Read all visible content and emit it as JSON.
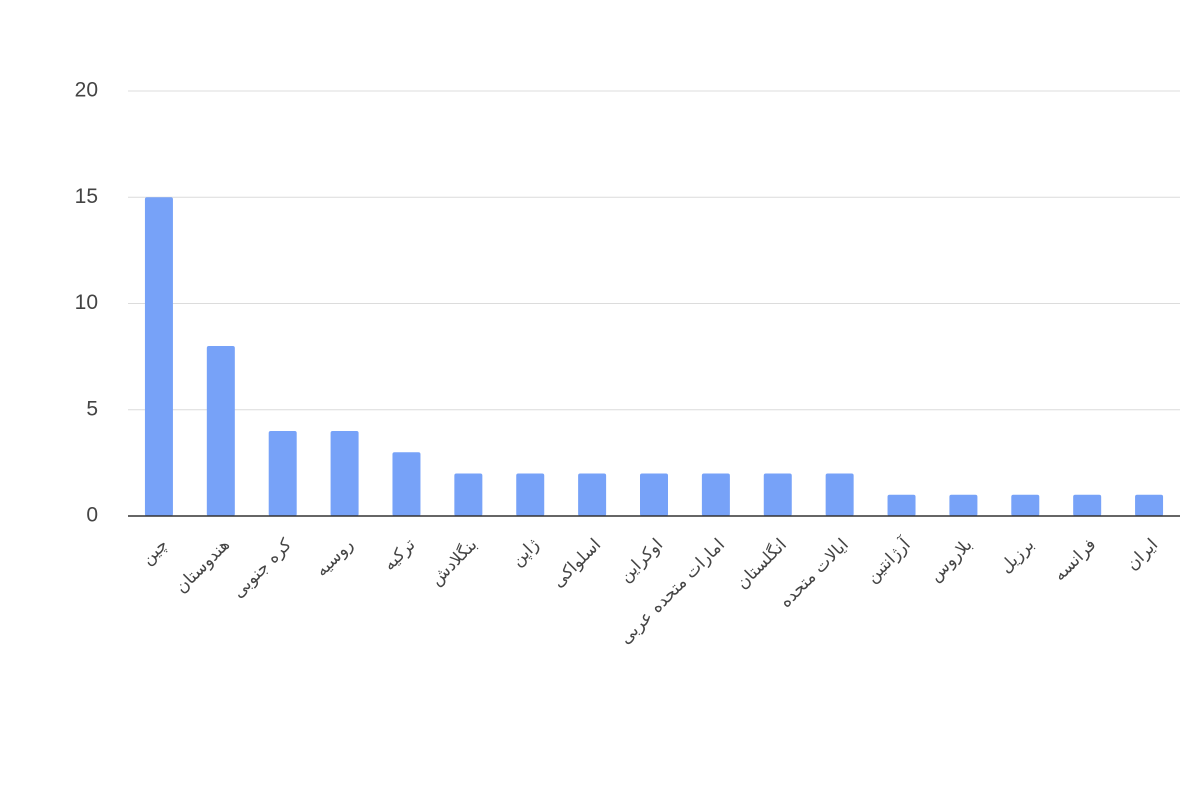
{
  "chart_data": {
    "type": "bar",
    "categories": [
      "چین",
      "هندوستان",
      "کره جنوبی",
      "روسیه",
      "ترکیه",
      "بنگلادش",
      "ژاپن",
      "اسلواکی",
      "اوکراین",
      "امارات متحده عربی",
      "انگلستان",
      "ایالات متحده",
      "آرژانتین",
      "بلاروس",
      "برزیل",
      "فرانسه",
      "ایران"
    ],
    "values": [
      15,
      8,
      4,
      4,
      3,
      2,
      2,
      2,
      2,
      2,
      2,
      2,
      1,
      1,
      1,
      1,
      1
    ],
    "color": "#77a2f8",
    "ylim": [
      0,
      20
    ],
    "yticks": [
      0,
      5,
      10,
      15,
      20
    ],
    "grid": true
  }
}
